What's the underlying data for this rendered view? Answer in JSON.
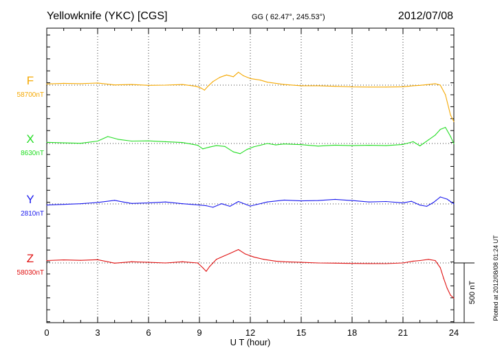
{
  "header": {
    "station": "Yellowknife (YKC)  [CGS]",
    "coords": "GG ( 62.47°, 245.53°)",
    "date": "2012/07/08"
  },
  "footnote": "Plotted at 2012/08/08 01:24  UT",
  "scale_bar_label": "500 nT",
  "chart_data": {
    "type": "line",
    "xlabel": "U T (hour)",
    "xlim": [
      0,
      24
    ],
    "xticks": [
      0,
      3,
      6,
      9,
      12,
      15,
      18,
      21,
      24
    ],
    "grid": true,
    "series": [
      {
        "name": "F",
        "baseline_label": "58700nT",
        "baseline": 58700,
        "color": "#f5a800",
        "x": [
          0,
          1,
          2,
          3,
          4,
          5,
          6,
          7,
          8,
          8.8,
          9.1,
          9.3,
          9.5,
          9.8,
          10.2,
          10.6,
          11,
          11.3,
          11.6,
          12,
          12.6,
          13,
          14,
          15,
          16,
          17,
          18,
          19,
          20,
          21,
          21.6,
          22,
          22.5,
          22.9,
          23.2,
          23.5,
          23.8,
          24
        ],
        "y": [
          58710,
          58715,
          58712,
          58718,
          58702,
          58705,
          58698,
          58700,
          58705,
          58690,
          58675,
          58658,
          58690,
          58730,
          58765,
          58785,
          58770,
          58808,
          58778,
          58755,
          58742,
          58725,
          58705,
          58695,
          58695,
          58690,
          58685,
          58684,
          58684,
          58686,
          58695,
          58698,
          58705,
          58712,
          58700,
          58620,
          58450,
          58395
        ]
      },
      {
        "name": "X",
        "baseline_label": "8630nT",
        "baseline": 8630,
        "color": "#22dd22",
        "x": [
          0,
          1,
          2,
          3,
          3.6,
          4.2,
          5,
          6,
          7,
          8,
          8.9,
          9.2,
          9.6,
          10,
          10.5,
          11,
          11.4,
          11.8,
          12.2,
          13,
          13.5,
          14,
          15,
          16,
          17,
          18,
          19,
          20,
          21,
          21.6,
          22,
          22.5,
          22.9,
          23.2,
          23.5,
          23.8,
          24
        ],
        "y": [
          8640,
          8635,
          8632,
          8650,
          8688,
          8665,
          8650,
          8652,
          8645,
          8638,
          8615,
          8585,
          8600,
          8612,
          8605,
          8560,
          8545,
          8580,
          8602,
          8630,
          8618,
          8626,
          8620,
          8608,
          8616,
          8612,
          8615,
          8612,
          8622,
          8645,
          8610,
          8660,
          8700,
          8748,
          8765,
          8690,
          8628
        ]
      },
      {
        "name": "Y",
        "baseline_label": "2810nT",
        "baseline": 2810,
        "color": "#1a1aee",
        "x": [
          0,
          1,
          2,
          3,
          4,
          4.5,
          5,
          6,
          7,
          8,
          9,
          9.4,
          9.8,
          10.3,
          10.8,
          11.3,
          11.8,
          12,
          13,
          14,
          15,
          16,
          17,
          18,
          19,
          20,
          21,
          21.5,
          22,
          22.4,
          22.8,
          23.2,
          23.6,
          24
        ],
        "y": [
          2800,
          2806,
          2812,
          2822,
          2840,
          2826,
          2814,
          2818,
          2826,
          2812,
          2800,
          2795,
          2782,
          2812,
          2790,
          2830,
          2802,
          2792,
          2826,
          2842,
          2835,
          2838,
          2848,
          2838,
          2826,
          2830,
          2818,
          2832,
          2800,
          2790,
          2822,
          2868,
          2850,
          2810
        ]
      },
      {
        "name": "Z",
        "baseline_label": "58030nT",
        "baseline": 58030,
        "color": "#e01010",
        "x": [
          0,
          1,
          2,
          3,
          4,
          5,
          6,
          7,
          8,
          8.9,
          9.2,
          9.4,
          9.6,
          10,
          10.4,
          10.8,
          11.3,
          11.7,
          12.2,
          12.8,
          13.5,
          14,
          15,
          16,
          17,
          18,
          19,
          20,
          21,
          21.6,
          22,
          22.5,
          22.9,
          23.2,
          23.4,
          23.6,
          23.8,
          24
        ],
        "y": [
          58050,
          58055,
          58052,
          58057,
          58028,
          58040,
          58035,
          58030,
          58040,
          58030,
          57990,
          57960,
          58000,
          58060,
          58085,
          58110,
          58142,
          58105,
          58080,
          58060,
          58045,
          58040,
          58035,
          58030,
          58028,
          58026,
          58025,
          58024,
          58030,
          58045,
          58050,
          58060,
          58050,
          57990,
          57900,
          57820,
          57760,
          57735
        ]
      }
    ]
  }
}
